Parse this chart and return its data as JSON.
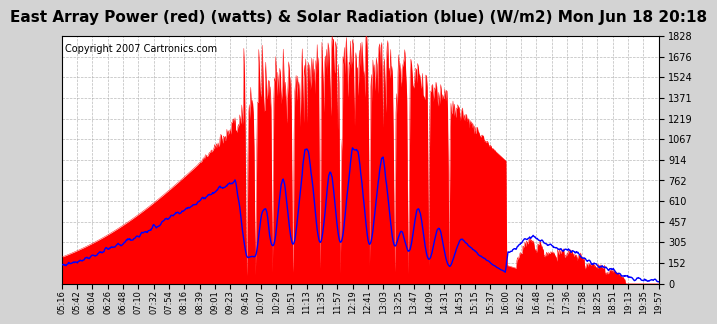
{
  "title": "East Array Power (red) (watts) & Solar Radiation (blue) (W/m2) Mon Jun 18 20:18",
  "copyright": "Copyright 2007 Cartronics.com",
  "yticks": [
    0.0,
    152.4,
    304.8,
    457.1,
    609.5,
    761.9,
    914.3,
    1066.6,
    1219.0,
    1371.4,
    1523.8,
    1676.1,
    1828.5
  ],
  "ylim": [
    0,
    1828.5
  ],
  "bg_color": "#d3d3d3",
  "plot_bg_color": "#ffffff",
  "grid_color": "#aaaaaa",
  "title_fontsize": 11,
  "copyright_fontsize": 7,
  "xtick_labels": [
    "05:16",
    "05:42",
    "06:04",
    "06:26",
    "06:48",
    "07:10",
    "07:32",
    "07:54",
    "08:16",
    "08:39",
    "09:01",
    "09:23",
    "09:45",
    "10:07",
    "10:29",
    "10:51",
    "11:13",
    "11:35",
    "11:57",
    "12:19",
    "12:41",
    "13:03",
    "13:25",
    "13:47",
    "14:09",
    "14:31",
    "14:53",
    "15:15",
    "15:37",
    "16:00",
    "16:22",
    "16:48",
    "17:10",
    "17:36",
    "17:58",
    "18:25",
    "18:51",
    "19:13",
    "19:35",
    "19:57"
  ]
}
